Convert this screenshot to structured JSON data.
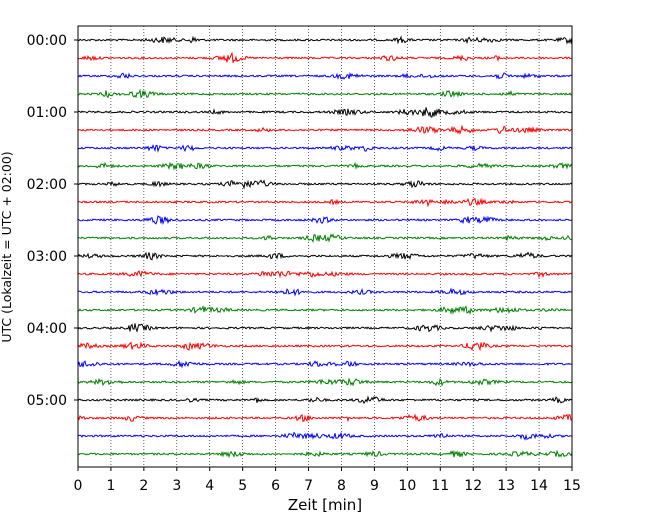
{
  "chart_data": {
    "type": "line",
    "title": "",
    "xlabel": "Zeit  [min]",
    "ylabel": "UTC (Lokalzeit = UTC + 02:00)",
    "xlim": [
      0,
      15
    ],
    "x_ticks": [
      "0",
      "1",
      "2",
      "3",
      "4",
      "5",
      "6",
      "7",
      "8",
      "9",
      "10",
      "11",
      "12",
      "13",
      "14",
      "15"
    ],
    "y_tick_labels": [
      "00:00",
      "01:00",
      "02:00",
      "03:00",
      "04:00",
      "05:00"
    ],
    "trace_interval_min": 15,
    "trace_count": 24,
    "trace_colors": [
      "#000000",
      "#ff0000",
      "#0000ff",
      "#008000"
    ],
    "vertical_grid": true,
    "grid_style": "dotted"
  }
}
